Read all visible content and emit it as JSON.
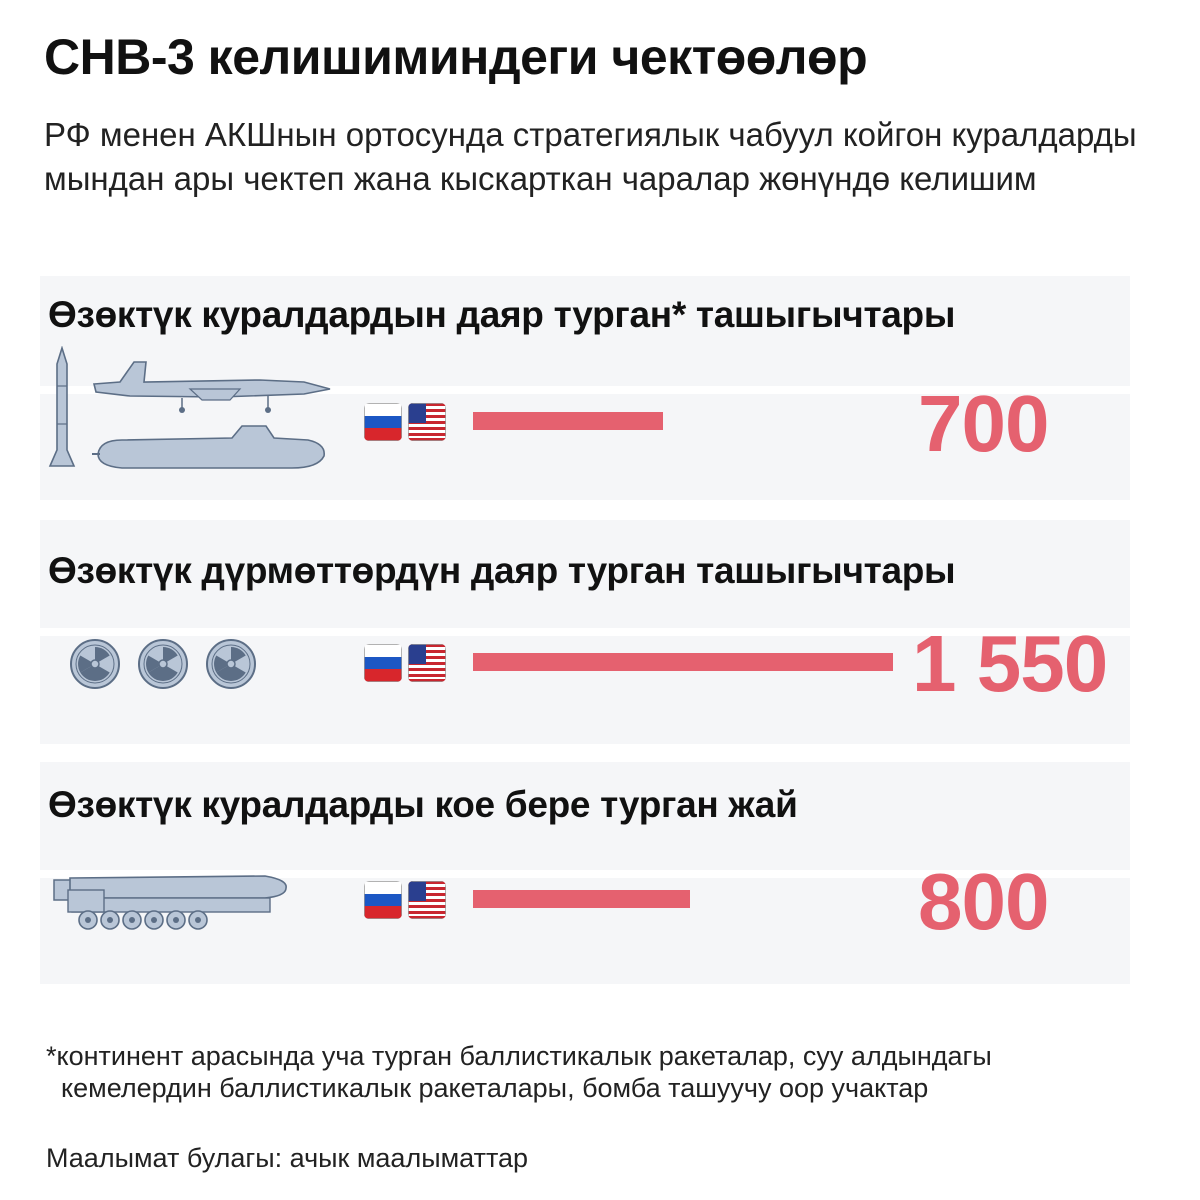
{
  "title": "СНВ-3 келишиминдеги чектөөлөр",
  "subtitle": "РФ менен АКШнын ортосунда стратегиялык чабуул койгон куралдарды мындан ары чектеп жана кыскарткан чаралар жөнүндө келишим",
  "footnote": "*континент арасында уча турган баллистикалык ракеталар, суу алдындагы\n  кемелердин баллистикалык ракеталары, бомба ташуучу оор учактар",
  "source": "Маалымат булагы: ачык маалыматтар",
  "colors": {
    "accent": "#e5616f",
    "band": "#f5f6f8",
    "icon_fill": "#b9c6d7",
    "icon_stroke": "#5c6e86"
  },
  "icons": [
    "missile-icon",
    "bomber-aircraft-icon",
    "submarine-icon",
    "radiation-icon",
    "russia-flag-icon",
    "usa-flag-icon",
    "mobile-launcher-icon"
  ],
  "chart_data": {
    "type": "bar",
    "categories": [
      "Өзөктүк куралдардын даяр турган* ташыгычтары",
      "Өзөктүк дүрмөттөрдүн даяр турган ташыгычтары",
      "Өзөктүк куралдарды кое бере турган жай"
    ],
    "values": [
      700,
      1550,
      800
    ],
    "value_labels": [
      "700",
      "1 550",
      "800"
    ],
    "orientation": "horizontal"
  }
}
